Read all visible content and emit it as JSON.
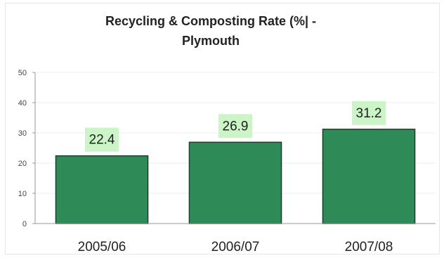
{
  "chart_data": {
    "type": "bar",
    "title_line1": "Recycling & Composting Rate (%| -",
    "title_line2": "Plymouth",
    "categories": [
      "2005/06",
      "2006/07",
      "2007/08"
    ],
    "values": [
      22.4,
      26.9,
      31.2
    ],
    "value_labels": [
      "22.4",
      "26.9",
      "31.2"
    ],
    "ylim": [
      0,
      50
    ],
    "yticks": [
      0,
      10,
      20,
      30,
      40,
      50
    ],
    "ytick_labels": [
      "0",
      "10",
      "20",
      "30",
      "40",
      "50"
    ],
    "grid": true,
    "legend": "none",
    "colors": {
      "bar_fill": "#2e8b57",
      "bar_stroke": "#1f3d2c",
      "label_bg": "#ccf5c7",
      "grid": "#eeeeee",
      "axis": "#999999",
      "text": "#222222"
    }
  }
}
